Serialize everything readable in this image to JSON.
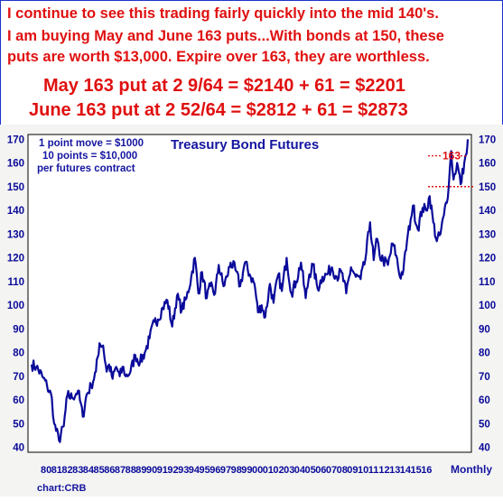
{
  "commentary": {
    "line1": "I continue to see this trading fairly quickly into the mid 140's.",
    "line2": "I am buying May and June 163 puts...With bonds at 150, these",
    "line3": "puts are worth $13,000. Expire over 163, they are worthless.",
    "line4": "May 163 put at 2 9/64 = $2140 + 61 = $2201",
    "line5": "June 163 put at 2 52/64 = $2812 + 61 = $2873"
  },
  "colors": {
    "text_red": "#e01010",
    "series_blue": "#0a0a9a",
    "annotation_red": "#e01010",
    "frame_blue": "#1a33cc"
  },
  "chart_data": {
    "type": "line",
    "title": "Treasury Bond Futures",
    "info": [
      "1 point move = $1000",
      "10 points = $10,000",
      "per futures contract"
    ],
    "frequency_label": "Monthly",
    "source": "chart:CRB",
    "x_tick_labels": [
      "80",
      "81",
      "82",
      "83",
      "84",
      "85",
      "86",
      "87",
      "88",
      "89",
      "90",
      "91",
      "92",
      "93",
      "94",
      "95",
      "96",
      "97",
      "98",
      "99",
      "00",
      "01",
      "02",
      "03",
      "04",
      "05",
      "06",
      "07",
      "08",
      "09",
      "10",
      "11",
      "12",
      "13",
      "14",
      "15",
      "16"
    ],
    "ylim": [
      38,
      172
    ],
    "y_ticks": [
      40,
      50,
      60,
      70,
      80,
      90,
      100,
      110,
      120,
      130,
      140,
      150,
      160,
      170
    ],
    "series": [
      {
        "x": [
          1979.9,
          1980.3,
          1980.8,
          1981.2,
          1981.6,
          1981.8,
          1982.2,
          1982.6,
          1982.9,
          1983.3,
          1983.8,
          1984.2,
          1984.5,
          1984.9,
          1985.3,
          1985.6,
          1985.9,
          1986.2,
          1986.4,
          1986.7,
          1987.0,
          1987.3,
          1987.6,
          1987.8,
          1988.2,
          1988.6,
          1989.0,
          1989.4,
          1989.8,
          1990.2,
          1990.5,
          1990.9,
          1991.3,
          1991.7,
          1992.1,
          1992.5,
          1992.9,
          1993.3,
          1993.6,
          1993.9,
          1994.2,
          1994.6,
          1994.9,
          1995.3,
          1995.6,
          1996.0,
          1996.3,
          1996.6,
          1997.0,
          1997.4,
          1997.8,
          1998.2,
          1998.6,
          1998.9,
          1999.2,
          1999.5,
          1999.9,
          2000.2,
          2000.6,
          2000.9,
          2001.3,
          2001.7,
          2002.1,
          2002.5,
          2002.9,
          2003.2,
          2003.5,
          2003.9,
          2004.3,
          2004.7,
          2005.1,
          2005.5,
          2005.9,
          2006.3,
          2006.7,
          2007.1,
          2007.5,
          2007.9,
          2008.3,
          2008.6,
          2008.9,
          2009.1,
          2009.4,
          2009.8,
          2010.2,
          2010.5,
          2010.8,
          2011.1,
          2011.4,
          2011.7,
          2011.9,
          2012.3,
          2012.7,
          2013.0,
          2013.3,
          2013.6,
          2013.9,
          2014.2,
          2014.5,
          2014.9,
          2015.1,
          2015.3,
          2015.6,
          2015.9,
          2016.2,
          2016.4,
          2016.5
        ],
        "values": [
          75,
          74,
          70,
          66,
          61,
          50,
          43,
          49,
          62,
          61,
          64,
          53,
          62,
          66,
          72,
          84,
          83,
          72,
          75,
          69,
          74,
          70,
          74,
          70,
          72,
          79,
          76,
          80,
          86,
          93,
          94,
          99,
          102,
          91,
          104,
          98,
          103,
          112,
          120,
          105,
          114,
          103,
          108,
          105,
          117,
          108,
          112,
          118,
          115,
          108,
          118,
          113,
          109,
          97,
          100,
          95,
          109,
          101,
          113,
          106,
          120,
          105,
          110,
          118,
          103,
          113,
          117,
          107,
          112,
          113,
          116,
          112,
          114,
          105,
          116,
          112,
          111,
          119,
          135,
          119,
          128,
          121,
          119,
          117,
          126,
          121,
          112,
          115,
          127,
          136,
          142,
          132,
          141,
          140,
          146,
          135,
          127,
          130,
          138,
          150,
          165,
          153,
          160,
          151,
          160,
          164,
          170
        ]
      }
    ],
    "annotations": [
      {
        "label": "163",
        "y": 163
      },
      {
        "label": "",
        "y": 150
      }
    ]
  }
}
